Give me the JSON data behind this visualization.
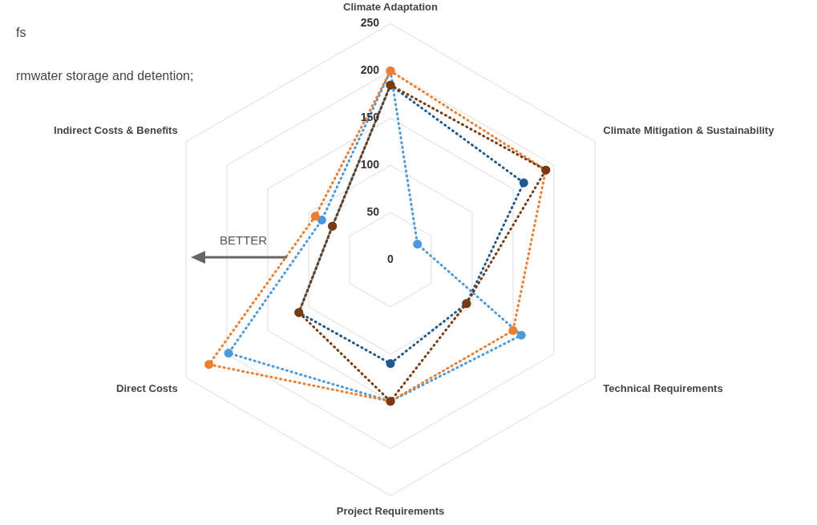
{
  "chart_data": {
    "type": "radar",
    "categories": [
      "Climate Adaptation",
      "Climate Mitigation & Sustainability",
      "Technical Requirements",
      "Project Requirements",
      "Direct Costs",
      "Indirect Costs & Benefits"
    ],
    "series": [
      {
        "color": "#7b3a10",
        "values": [
          185,
          190,
          93,
          150,
          112,
          71
        ]
      },
      {
        "color": "#1f5a8f",
        "values": [
          185,
          163,
          93,
          110,
          112,
          71
        ]
      },
      {
        "color": "#f07d2b",
        "values": [
          200,
          190,
          150,
          150,
          222,
          92
        ]
      },
      {
        "color": "#4a9ae0",
        "values": [
          200,
          33,
          160,
          150,
          198,
          84
        ]
      }
    ],
    "ylim": [
      0,
      250
    ],
    "yticks": [
      0,
      50,
      100,
      150,
      200,
      250
    ],
    "grid": true,
    "marker": "circle",
    "line_style": "dotted",
    "annotations": [
      "fs",
      "rmwater storage and detention;",
      "BETTER"
    ]
  }
}
